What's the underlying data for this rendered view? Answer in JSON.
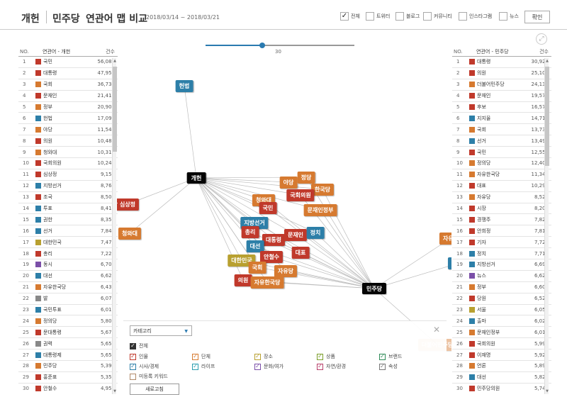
{
  "header": {
    "title": "개헌",
    "party": "민주당",
    "map_title": "연관어 맵 비교",
    "date_range": "2018/03/14 ~ 2018/03/21",
    "confirm_label": "확인"
  },
  "filters": [
    {
      "label": "전체",
      "checked": true
    },
    {
      "label": "트위터",
      "checked": false
    },
    {
      "label": "블로그",
      "checked": false
    },
    {
      "label": "커뮤니티",
      "checked": false
    },
    {
      "label": "인스타그램",
      "checked": false
    },
    {
      "label": "뉴스",
      "checked": false
    }
  ],
  "slider": {
    "value": "30",
    "fraction": 0.38
  },
  "left_table": {
    "headers": {
      "no": "NO.",
      "word": "연관어 - 개헌",
      "count": "건수"
    },
    "rows": [
      {
        "no": "1",
        "word": "국민",
        "count": "56,082",
        "color": "#c0392b"
      },
      {
        "no": "2",
        "word": "대통령",
        "count": "47,953",
        "color": "#c0392b"
      },
      {
        "no": "3",
        "word": "국회",
        "count": "36,734",
        "color": "#d67a30"
      },
      {
        "no": "4",
        "word": "문재인",
        "count": "21,412",
        "color": "#c0392b"
      },
      {
        "no": "5",
        "word": "정부",
        "count": "20,905",
        "color": "#d67a30"
      },
      {
        "no": "6",
        "word": "헌법",
        "count": "17,090",
        "color": "#2d7fa8"
      },
      {
        "no": "7",
        "word": "야당",
        "count": "11,543",
        "color": "#d67a30"
      },
      {
        "no": "8",
        "word": "의원",
        "count": "10,480",
        "color": "#c0392b"
      },
      {
        "no": "9",
        "word": "청와대",
        "count": "10,311",
        "color": "#d67a30"
      },
      {
        "no": "10",
        "word": "국회의원",
        "count": "10,242",
        "color": "#c0392b"
      },
      {
        "no": "11",
        "word": "심상정",
        "count": "9,150",
        "color": "#c0392b"
      },
      {
        "no": "12",
        "word": "지방선거",
        "count": "8,768",
        "color": "#2d7fa8"
      },
      {
        "no": "13",
        "word": "조국",
        "count": "8,503",
        "color": "#c0392b"
      },
      {
        "no": "14",
        "word": "투표",
        "count": "8,414",
        "color": "#2d7fa8"
      },
      {
        "no": "15",
        "word": "권한",
        "count": "8,350",
        "color": "#2d7fa8"
      },
      {
        "no": "16",
        "word": "선거",
        "count": "7,840",
        "color": "#2d7fa8"
      },
      {
        "no": "17",
        "word": "대한민국",
        "count": "7,477",
        "color": "#b8a030"
      },
      {
        "no": "18",
        "word": "총리",
        "count": "7,226",
        "color": "#c0392b"
      },
      {
        "no": "19",
        "word": "동시",
        "count": "6,701",
        "color": "#7b4fa8"
      },
      {
        "no": "20",
        "word": "대선",
        "count": "6,625",
        "color": "#2d7fa8"
      },
      {
        "no": "21",
        "word": "자유한국당",
        "count": "6,433",
        "color": "#d67a30"
      },
      {
        "no": "22",
        "word": "발",
        "count": "6,073",
        "color": "#888888"
      },
      {
        "no": "23",
        "word": "국민투표",
        "count": "6,012",
        "color": "#2d7fa8"
      },
      {
        "no": "24",
        "word": "정의당",
        "count": "5,806",
        "color": "#d67a30"
      },
      {
        "no": "25",
        "word": "문대통령",
        "count": "5,675",
        "color": "#c0392b"
      },
      {
        "no": "26",
        "word": "권력",
        "count": "5,656",
        "color": "#888888"
      },
      {
        "no": "27",
        "word": "대통령제",
        "count": "5,654",
        "color": "#2d7fa8"
      },
      {
        "no": "28",
        "word": "민주당",
        "count": "5,393",
        "color": "#d67a30"
      },
      {
        "no": "29",
        "word": "홍준표",
        "count": "5,356",
        "color": "#c0392b"
      },
      {
        "no": "30",
        "word": "안철수",
        "count": "4,957",
        "color": "#c0392b"
      }
    ]
  },
  "right_table": {
    "headers": {
      "no": "NO.",
      "word": "연관어 - 민주당",
      "count": "건수"
    },
    "rows": [
      {
        "no": "1",
        "word": "대통령",
        "count": "30,929",
        "color": "#c0392b"
      },
      {
        "no": "2",
        "word": "의원",
        "count": "25,106",
        "color": "#c0392b"
      },
      {
        "no": "3",
        "word": "더불어민주당",
        "count": "24,138",
        "color": "#d67a30"
      },
      {
        "no": "4",
        "word": "문재인",
        "count": "19,576",
        "color": "#c0392b"
      },
      {
        "no": "5",
        "word": "후보",
        "count": "16,575",
        "color": "#c0392b"
      },
      {
        "no": "6",
        "word": "지지율",
        "count": "14,711",
        "color": "#2d7fa8"
      },
      {
        "no": "7",
        "word": "국회",
        "count": "13,732",
        "color": "#d67a30"
      },
      {
        "no": "8",
        "word": "선거",
        "count": "13,491",
        "color": "#2d7fa8"
      },
      {
        "no": "9",
        "word": "국민",
        "count": "12,556",
        "color": "#c0392b"
      },
      {
        "no": "10",
        "word": "정의당",
        "count": "12,409",
        "color": "#d67a30"
      },
      {
        "no": "11",
        "word": "자유한국당",
        "count": "11,347",
        "color": "#d67a30"
      },
      {
        "no": "12",
        "word": "대표",
        "count": "10,291",
        "color": "#c0392b"
      },
      {
        "no": "13",
        "word": "자유당",
        "count": "8,524",
        "color": "#d67a30"
      },
      {
        "no": "14",
        "word": "시장",
        "count": "8,207",
        "color": "#c0392b"
      },
      {
        "no": "15",
        "word": "경쟁주",
        "count": "7,827",
        "color": "#c0392b"
      },
      {
        "no": "16",
        "word": "안희정",
        "count": "7,813",
        "color": "#c0392b"
      },
      {
        "no": "17",
        "word": "기자",
        "count": "7,720",
        "color": "#c0392b"
      },
      {
        "no": "18",
        "word": "정치",
        "count": "7,710",
        "color": "#2d7fa8"
      },
      {
        "no": "19",
        "word": "지방선거",
        "count": "6,693",
        "color": "#2d7fa8"
      },
      {
        "no": "20",
        "word": "뉴스",
        "count": "6,627",
        "color": "#7b4fa8"
      },
      {
        "no": "21",
        "word": "정부",
        "count": "6,604",
        "color": "#d67a30"
      },
      {
        "no": "22",
        "word": "당원",
        "count": "6,524",
        "color": "#c0392b"
      },
      {
        "no": "23",
        "word": "서울",
        "count": "6,050",
        "color": "#b8a030"
      },
      {
        "no": "24",
        "word": "출마",
        "count": "6,029",
        "color": "#2d7fa8"
      },
      {
        "no": "25",
        "word": "문재인정부",
        "count": "6,011",
        "color": "#d67a30"
      },
      {
        "no": "26",
        "word": "국회의원",
        "count": "5,999",
        "color": "#c0392b"
      },
      {
        "no": "27",
        "word": "이재명",
        "count": "5,923",
        "color": "#c0392b"
      },
      {
        "no": "28",
        "word": "언론",
        "count": "5,893",
        "color": "#d67a30"
      },
      {
        "no": "29",
        "word": "대선",
        "count": "5,829",
        "color": "#2d7fa8"
      },
      {
        "no": "30",
        "word": "민주당의원",
        "count": "5,742",
        "color": "#c0392b"
      }
    ]
  },
  "network": {
    "hubs": [
      {
        "id": "gaeheon",
        "label": "개헌"
      },
      {
        "id": "minjoo",
        "label": "민주당"
      }
    ],
    "nodes": [
      {
        "label": "헌법",
        "color": "#2d7fa8",
        "hubs": [
          "gaeheon"
        ]
      },
      {
        "label": "심상정",
        "color": "#c0392b",
        "hubs": [
          "gaeheon"
        ]
      },
      {
        "label": "청와대",
        "color": "#d67a30",
        "hubs": [
          "gaeheon"
        ]
      },
      {
        "label": "야당",
        "color": "#d67a30",
        "hubs": [
          "gaeheon"
        ]
      },
      {
        "label": "정당",
        "color": "#d67a30",
        "hubs": [
          "gaeheon",
          "minjoo"
        ]
      },
      {
        "label": "한국당",
        "color": "#d67a30",
        "hubs": [
          "gaeheon",
          "minjoo"
        ]
      },
      {
        "label": "국회의원",
        "color": "#c0392b",
        "hubs": [
          "gaeheon",
          "minjoo"
        ]
      },
      {
        "label": "청와대",
        "color": "#d67a30",
        "hubs": [
          "gaeheon",
          "minjoo"
        ]
      },
      {
        "label": "국민",
        "color": "#c0392b",
        "hubs": [
          "gaeheon",
          "minjoo"
        ]
      },
      {
        "label": "문재인정부",
        "color": "#d67a30",
        "hubs": [
          "gaeheon",
          "minjoo"
        ]
      },
      {
        "label": "지방선거",
        "color": "#2d7fa8",
        "hubs": [
          "gaeheon",
          "minjoo"
        ]
      },
      {
        "label": "총리",
        "color": "#c0392b",
        "hubs": [
          "gaeheon",
          "minjoo"
        ]
      },
      {
        "label": "대통령",
        "color": "#c0392b",
        "hubs": [
          "gaeheon",
          "minjoo"
        ]
      },
      {
        "label": "문재인",
        "color": "#c0392b",
        "hubs": [
          "gaeheon",
          "minjoo"
        ]
      },
      {
        "label": "정치",
        "color": "#2d7fa8",
        "hubs": [
          "gaeheon",
          "minjoo"
        ]
      },
      {
        "label": "대선",
        "color": "#2d7fa8",
        "hubs": [
          "gaeheon",
          "minjoo"
        ]
      },
      {
        "label": "안철수",
        "color": "#c0392b",
        "hubs": [
          "gaeheon",
          "minjoo"
        ]
      },
      {
        "label": "대표",
        "color": "#c0392b",
        "hubs": [
          "gaeheon",
          "minjoo"
        ]
      },
      {
        "label": "대한민국",
        "color": "#b8a030",
        "hubs": [
          "gaeheon",
          "minjoo"
        ]
      },
      {
        "label": "국회",
        "color": "#d67a30",
        "hubs": [
          "gaeheon",
          "minjoo"
        ]
      },
      {
        "label": "자유당",
        "color": "#d67a30",
        "hubs": [
          "gaeheon",
          "minjoo"
        ]
      },
      {
        "label": "의원",
        "color": "#c0392b",
        "hubs": [
          "gaeheon",
          "minjoo"
        ]
      },
      {
        "label": "자유한국당",
        "color": "#d67a30",
        "hubs": [
          "gaeheon",
          "minjoo"
        ]
      },
      {
        "label": "자유당",
        "color": "#d67a30",
        "hubs": [
          "minjoo"
        ]
      },
      {
        "label": "지지율",
        "color": "#2d7fa8",
        "hubs": [
          "minjoo"
        ]
      },
      {
        "label": "더불어민주당",
        "color": "#d67a30",
        "hubs": [
          "minjoo"
        ]
      }
    ]
  },
  "legend": {
    "select_label": "카테고리",
    "all_label": "전체",
    "items": [
      {
        "label": "인물",
        "color": "#c0392b",
        "checked": true
      },
      {
        "label": "단체",
        "color": "#d67a30",
        "checked": true
      },
      {
        "label": "장소",
        "color": "#b8a030",
        "checked": true
      },
      {
        "label": "상품",
        "color": "#7a9e2a",
        "checked": true
      },
      {
        "label": "브랜드",
        "color": "#2e8b57",
        "checked": true
      },
      {
        "label": "시사/경제",
        "color": "#2d7fa8",
        "checked": true
      },
      {
        "label": "라이프",
        "color": "#2a9dae",
        "checked": true
      },
      {
        "label": "문화/여가",
        "color": "#7b4fa8",
        "checked": true
      },
      {
        "label": "자연/환경",
        "color": "#b8406a",
        "checked": true
      },
      {
        "label": "속성",
        "color": "#777777",
        "checked": true
      },
      {
        "label": "미등록 키워드",
        "color": "#b08a6a",
        "checked": false
      }
    ],
    "reset_label": "새로고침"
  }
}
